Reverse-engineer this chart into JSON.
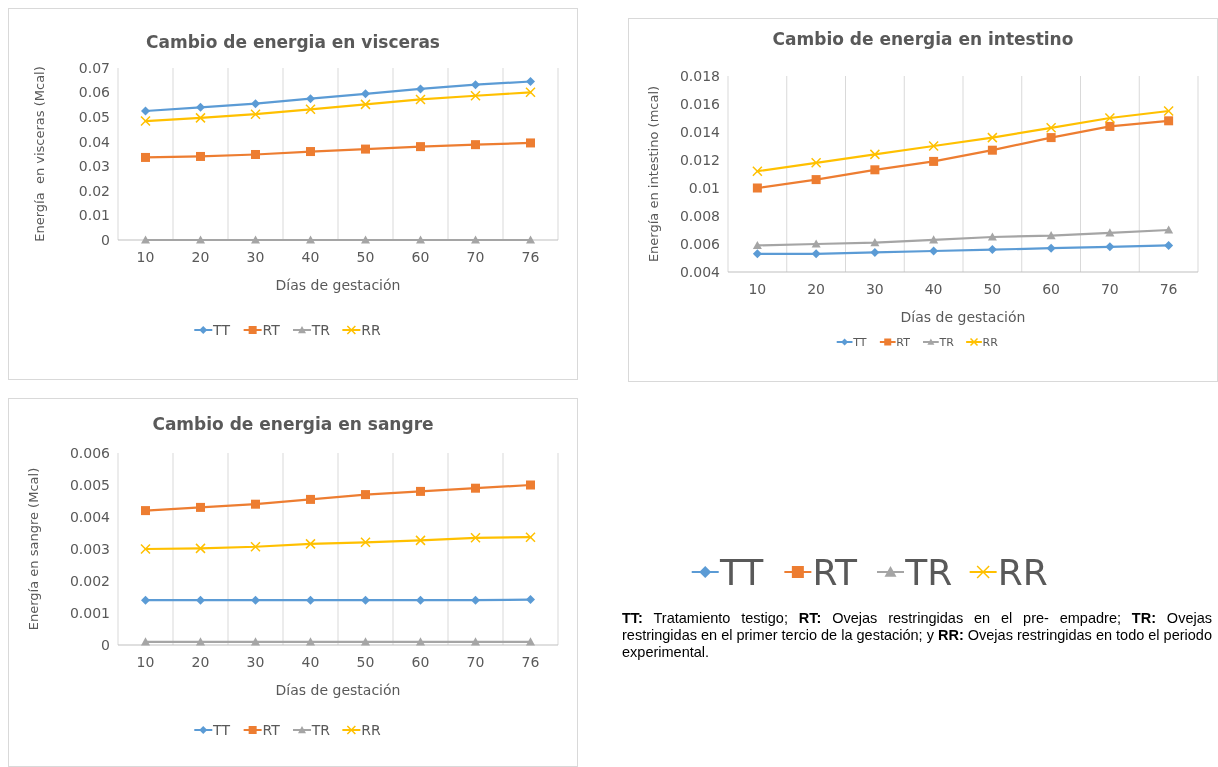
{
  "chart_data": [
    {
      "type": "line",
      "title": "Cambio de energia en visceras",
      "xlabel": "Días de gestación",
      "ylabel": "Energía  en visceras (Mcal)",
      "categories": [
        "10",
        "20",
        "30",
        "40",
        "50",
        "60",
        "70",
        "76"
      ],
      "ylim": [
        0,
        0.07
      ],
      "yticks": [
        0,
        0.01,
        0.02,
        0.03,
        0.04,
        0.05,
        0.06,
        0.07
      ],
      "grid": "x",
      "legend": "bottom",
      "series": [
        {
          "name": "TT",
          "color": "#5b9bd5",
          "marker": "diamond",
          "values": [
            0.0525,
            0.054,
            0.0555,
            0.0575,
            0.0595,
            0.0615,
            0.0632,
            0.0645
          ]
        },
        {
          "name": "RT",
          "color": "#ed7d31",
          "marker": "square",
          "values": [
            0.0336,
            0.034,
            0.0348,
            0.036,
            0.037,
            0.038,
            0.0388,
            0.0395
          ]
        },
        {
          "name": "TR",
          "color": "#a5a5a5",
          "marker": "triangle",
          "values": [
            0,
            0,
            0,
            0,
            0,
            0,
            0,
            0
          ]
        },
        {
          "name": "RR",
          "color": "#ffc000",
          "marker": "cross",
          "values": [
            0.0484,
            0.0497,
            0.0512,
            0.0532,
            0.0552,
            0.0572,
            0.0587,
            0.0601
          ]
        }
      ]
    },
    {
      "type": "line",
      "title": "Cambio de energia en intestino",
      "xlabel": "Días de gestación",
      "ylabel": "Energía en intestino (mcal)",
      "categories": [
        "10",
        "20",
        "30",
        "40",
        "50",
        "60",
        "70",
        "76"
      ],
      "ylim": [
        0.004,
        0.018
      ],
      "yticks": [
        0.004,
        0.006,
        0.008,
        0.01,
        0.012,
        0.014,
        0.016,
        0.018
      ],
      "grid": "x",
      "legend": "bottom",
      "series": [
        {
          "name": "TT",
          "color": "#5b9bd5",
          "marker": "diamond",
          "values": [
            0.0053,
            0.0053,
            0.0054,
            0.0055,
            0.0056,
            0.0057,
            0.0058,
            0.0059
          ]
        },
        {
          "name": "RT",
          "color": "#ed7d31",
          "marker": "square",
          "values": [
            0.01,
            0.0106,
            0.0113,
            0.0119,
            0.0127,
            0.0136,
            0.0144,
            0.0148
          ]
        },
        {
          "name": "TR",
          "color": "#a5a5a5",
          "marker": "triangle",
          "values": [
            0.0059,
            0.006,
            0.0061,
            0.0063,
            0.0065,
            0.0066,
            0.0068,
            0.007
          ]
        },
        {
          "name": "RR",
          "color": "#ffc000",
          "marker": "cross",
          "values": [
            0.0112,
            0.0118,
            0.0124,
            0.013,
            0.0136,
            0.0143,
            0.015,
            0.0155
          ]
        }
      ]
    },
    {
      "type": "line",
      "title": "Cambio de energia en sangre",
      "xlabel": "Días de gestación",
      "ylabel": "Energía en sangre (Mcal)",
      "categories": [
        "10",
        "20",
        "30",
        "40",
        "50",
        "60",
        "70",
        "76"
      ],
      "ylim": [
        0,
        0.006
      ],
      "yticks": [
        0,
        0.001,
        0.002,
        0.003,
        0.004,
        0.005,
        0.006
      ],
      "grid": "x",
      "legend": "bottom",
      "series": [
        {
          "name": "TT",
          "color": "#5b9bd5",
          "marker": "diamond",
          "values": [
            0.0014,
            0.0014,
            0.0014,
            0.0014,
            0.0014,
            0.0014,
            0.0014,
            0.00142
          ]
        },
        {
          "name": "RT",
          "color": "#ed7d31",
          "marker": "square",
          "values": [
            0.0042,
            0.0043,
            0.0044,
            0.00455,
            0.0047,
            0.0048,
            0.0049,
            0.005
          ]
        },
        {
          "name": "TR",
          "color": "#a5a5a5",
          "marker": "triangle",
          "values": [
            0.0001,
            0.0001,
            0.0001,
            0.0001,
            0.0001,
            0.0001,
            0.0001,
            0.0001
          ]
        },
        {
          "name": "RR",
          "color": "#ffc000",
          "marker": "cross",
          "values": [
            0.003,
            0.00302,
            0.00307,
            0.00316,
            0.00321,
            0.00327,
            0.00335,
            0.00337
          ]
        }
      ]
    },
    {
      "type": "other",
      "legend": "top",
      "series": [
        {
          "name": "TT",
          "color": "#5b9bd5",
          "marker": "diamond"
        },
        {
          "name": "RT",
          "color": "#ed7d31",
          "marker": "square"
        },
        {
          "name": "TR",
          "color": "#a5a5a5",
          "marker": "triangle"
        },
        {
          "name": "RR",
          "color": "#ffc000",
          "marker": "cross"
        }
      ],
      "annotations": [
        "TT: Tratamiento testigo; RT: Ovejas restringidas en el pre- empadre; TR: Ovejas restringidas en el primer tercio de la gestación; y RR: Ovejas restringidas en todo el periodo experimental."
      ]
    }
  ]
}
